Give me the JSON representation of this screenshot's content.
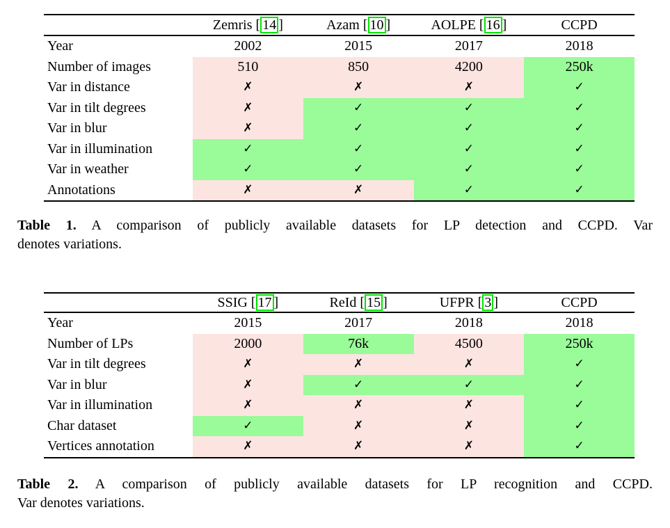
{
  "colors": {
    "yes_bg": "#9afb99",
    "no_bg": "#fce4e1",
    "cite_border": "#00e400",
    "text": "#000000",
    "page_bg": "#ffffff"
  },
  "symbols": {
    "check": "✓",
    "cross": "✗"
  },
  "table1": {
    "columns": [
      {
        "name": "Zemris",
        "cite": "14"
      },
      {
        "name": "Azam",
        "cite": "10"
      },
      {
        "name": "AOLPE",
        "cite": "16"
      },
      {
        "name": "CCPD",
        "cite": ""
      }
    ],
    "rows": [
      {
        "label": "Year",
        "cells": [
          {
            "text": "2002",
            "bg": "none"
          },
          {
            "text": "2015",
            "bg": "none"
          },
          {
            "text": "2017",
            "bg": "none"
          },
          {
            "text": "2018",
            "bg": "none"
          }
        ]
      },
      {
        "label": "Number of images",
        "cells": [
          {
            "text": "510",
            "bg": "pink"
          },
          {
            "text": "850",
            "bg": "pink"
          },
          {
            "text": "4200",
            "bg": "pink"
          },
          {
            "text": "250k",
            "bg": "green"
          }
        ]
      },
      {
        "label": "Var in distance",
        "cells": [
          {
            "text": "✗",
            "bg": "pink"
          },
          {
            "text": "✗",
            "bg": "pink"
          },
          {
            "text": "✗",
            "bg": "pink"
          },
          {
            "text": "✓",
            "bg": "green"
          }
        ]
      },
      {
        "label": "Var in tilt degrees",
        "cells": [
          {
            "text": "✗",
            "bg": "pink"
          },
          {
            "text": "✓",
            "bg": "green"
          },
          {
            "text": "✓",
            "bg": "green"
          },
          {
            "text": "✓",
            "bg": "green"
          }
        ]
      },
      {
        "label": "Var in blur",
        "cells": [
          {
            "text": "✗",
            "bg": "pink"
          },
          {
            "text": "✓",
            "bg": "green"
          },
          {
            "text": "✓",
            "bg": "green"
          },
          {
            "text": "✓",
            "bg": "green"
          }
        ]
      },
      {
        "label": "Var in illumination",
        "cells": [
          {
            "text": "✓",
            "bg": "green"
          },
          {
            "text": "✓",
            "bg": "green"
          },
          {
            "text": "✓",
            "bg": "green"
          },
          {
            "text": "✓",
            "bg": "green"
          }
        ]
      },
      {
        "label": "Var in weather",
        "cells": [
          {
            "text": "✓",
            "bg": "green"
          },
          {
            "text": "✓",
            "bg": "green"
          },
          {
            "text": "✓",
            "bg": "green"
          },
          {
            "text": "✓",
            "bg": "green"
          }
        ]
      },
      {
        "label": "Annotations",
        "cells": [
          {
            "text": "✗",
            "bg": "pink"
          },
          {
            "text": "✗",
            "bg": "pink"
          },
          {
            "text": "✓",
            "bg": "green"
          },
          {
            "text": "✓",
            "bg": "green"
          }
        ]
      }
    ],
    "caption": {
      "label": "Table 1.",
      "line1_rest": " A comparison of publicly available datasets for LP detection and CCPD. Var",
      "line2": "denotes variations."
    }
  },
  "table2": {
    "columns": [
      {
        "name": "SSIG",
        "cite": "17"
      },
      {
        "name": "ReId",
        "cite": "15"
      },
      {
        "name": "UFPR",
        "cite": "3"
      },
      {
        "name": "CCPD",
        "cite": ""
      }
    ],
    "rows": [
      {
        "label": "Year",
        "cells": [
          {
            "text": "2015",
            "bg": "none"
          },
          {
            "text": "2017",
            "bg": "none"
          },
          {
            "text": "2018",
            "bg": "none"
          },
          {
            "text": "2018",
            "bg": "none"
          }
        ]
      },
      {
        "label": "Number of LPs",
        "cells": [
          {
            "text": "2000",
            "bg": "pink"
          },
          {
            "text": "76k",
            "bg": "green"
          },
          {
            "text": "4500",
            "bg": "pink"
          },
          {
            "text": "250k",
            "bg": "green"
          }
        ]
      },
      {
        "label": "Var in tilt degrees",
        "cells": [
          {
            "text": "✗",
            "bg": "pink"
          },
          {
            "text": "✗",
            "bg": "pink"
          },
          {
            "text": "✗",
            "bg": "pink"
          },
          {
            "text": "✓",
            "bg": "green"
          }
        ]
      },
      {
        "label": "Var in blur",
        "cells": [
          {
            "text": "✗",
            "bg": "pink"
          },
          {
            "text": "✓",
            "bg": "green"
          },
          {
            "text": "✓",
            "bg": "green"
          },
          {
            "text": "✓",
            "bg": "green"
          }
        ]
      },
      {
        "label": "Var in illumination",
        "cells": [
          {
            "text": "✗",
            "bg": "pink"
          },
          {
            "text": "✗",
            "bg": "pink"
          },
          {
            "text": "✗",
            "bg": "pink"
          },
          {
            "text": "✓",
            "bg": "green"
          }
        ]
      },
      {
        "label": "Char dataset",
        "cells": [
          {
            "text": "✓",
            "bg": "green"
          },
          {
            "text": "✗",
            "bg": "pink"
          },
          {
            "text": "✗",
            "bg": "pink"
          },
          {
            "text": "✓",
            "bg": "green"
          }
        ]
      },
      {
        "label": "Vertices annotation",
        "cells": [
          {
            "text": "✗",
            "bg": "pink"
          },
          {
            "text": "✗",
            "bg": "pink"
          },
          {
            "text": "✗",
            "bg": "pink"
          },
          {
            "text": "✓",
            "bg": "green"
          }
        ]
      }
    ],
    "caption": {
      "label": "Table 2.",
      "line1_rest": " A comparison of publicly available datasets for LP recognition and CCPD.",
      "line2": "Var denotes variations."
    }
  }
}
